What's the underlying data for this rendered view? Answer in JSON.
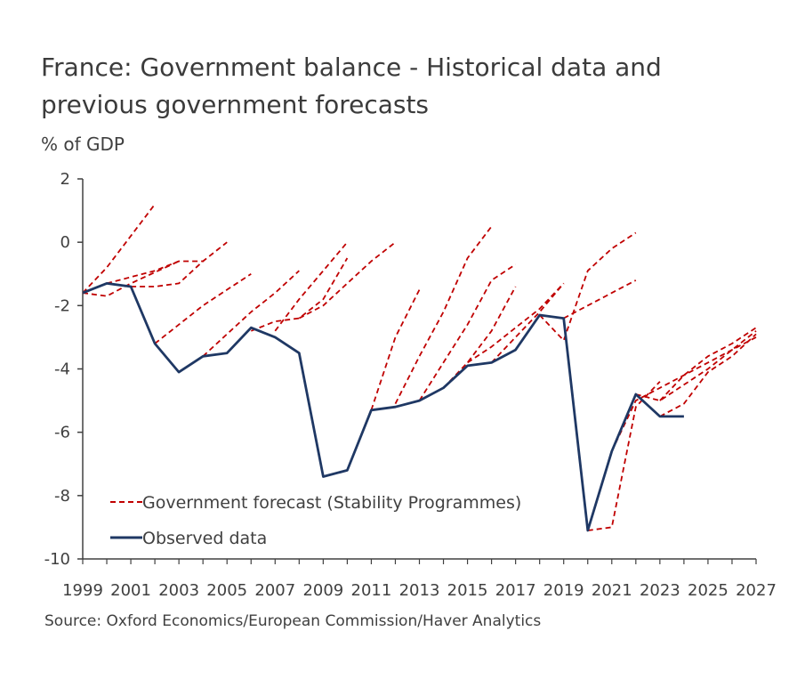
{
  "title": "France: Government balance - Historical data and previous government forecasts",
  "unit_label": "% of GDP",
  "source": "Source: Oxford Economics/European Commission/Haver Analytics",
  "colors": {
    "observed": "#1f3864",
    "forecast": "#c00000",
    "axis": "#404040"
  },
  "chart_data": {
    "type": "line",
    "title": "France: Government balance - Historical data and previous government forecasts",
    "ylabel": "% of GDP",
    "xlim": [
      1999,
      2027
    ],
    "ylim": [
      -10,
      2
    ],
    "x_ticks": [
      "1999",
      "2001",
      "2003",
      "2005",
      "2007",
      "2009",
      "2011",
      "2013",
      "2015",
      "2017",
      "2019",
      "2021",
      "2023",
      "2025",
      "2027"
    ],
    "y_ticks": [
      "2",
      "0",
      "-2",
      "-4",
      "-6",
      "-8",
      "-10"
    ],
    "legend": {
      "position": "bottom-left",
      "entries": [
        "Government forecast (Stability Programmes)",
        "Observed data"
      ]
    },
    "series": [
      {
        "name": "Observed data",
        "style": "solid",
        "x": [
          1999,
          2000,
          2001,
          2002,
          2003,
          2004,
          2005,
          2006,
          2007,
          2008,
          2009,
          2010,
          2011,
          2012,
          2013,
          2014,
          2015,
          2016,
          2017,
          2018,
          2019,
          2020,
          2021,
          2022,
          2023,
          2024
        ],
        "y": [
          -1.6,
          -1.3,
          -1.4,
          -3.2,
          -4.1,
          -3.6,
          -3.5,
          -2.7,
          -3.0,
          -3.5,
          -7.4,
          -7.2,
          -5.3,
          -5.2,
          -5.0,
          -4.6,
          -3.9,
          -3.8,
          -3.4,
          -2.3,
          -2.4,
          -9.1,
          -6.6,
          -4.8,
          -5.5,
          -5.5
        ]
      },
      {
        "name": "Government forecast (Stability Programmes)",
        "style": "dashed",
        "forecasts": [
          {
            "x": [
              1999,
              2000,
              2001,
              2002
            ],
            "y": [
              -1.6,
              -0.8,
              0.2,
              1.2
            ]
          },
          {
            "x": [
              1999,
              2000,
              2001,
              2003
            ],
            "y": [
              -1.6,
              -1.7,
              -1.3,
              -0.6
            ]
          },
          {
            "x": [
              2000,
              2001,
              2002,
              2003,
              2004
            ],
            "y": [
              -1.3,
              -1.1,
              -0.9,
              -0.6,
              -0.6
            ]
          },
          {
            "x": [
              2001,
              2002,
              2003,
              2004,
              2005
            ],
            "y": [
              -1.4,
              -1.4,
              -1.3,
              -0.6,
              0.0
            ]
          },
          {
            "x": [
              2002,
              2003,
              2004,
              2005,
              2006
            ],
            "y": [
              -3.2,
              -2.6,
              -2.0,
              -1.5,
              -1.0
            ]
          },
          {
            "x": [
              2004,
              2005,
              2006,
              2007,
              2008
            ],
            "y": [
              -3.6,
              -2.9,
              -2.2,
              -1.6,
              -0.9
            ]
          },
          {
            "x": [
              2006,
              2007,
              2008,
              2009,
              2010
            ],
            "y": [
              -2.8,
              -2.5,
              -2.4,
              -1.8,
              -0.5
            ]
          },
          {
            "x": [
              2007,
              2008,
              2009,
              2010
            ],
            "y": [
              -2.8,
              -1.8,
              -0.9,
              0.0
            ]
          },
          {
            "x": [
              2008,
              2009,
              2010,
              2011,
              2012
            ],
            "y": [
              -2.4,
              -2.0,
              -1.3,
              -0.6,
              0.0
            ]
          },
          {
            "x": [
              2011,
              2012,
              2013
            ],
            "y": [
              -5.3,
              -3.0,
              -1.5
            ]
          },
          {
            "x": [
              2012,
              2013,
              2014,
              2015,
              2016
            ],
            "y": [
              -5.1,
              -3.6,
              -2.2,
              -0.5,
              0.5
            ]
          },
          {
            "x": [
              2013,
              2014,
              2015,
              2016,
              2017
            ],
            "y": [
              -5.0,
              -3.8,
              -2.6,
              -1.2,
              -0.7
            ]
          },
          {
            "x": [
              2014,
              2015,
              2016,
              2017
            ],
            "y": [
              -4.6,
              -3.8,
              -2.8,
              -1.4
            ]
          },
          {
            "x": [
              2015,
              2016,
              2017,
              2018,
              2019
            ],
            "y": [
              -3.8,
              -3.3,
              -2.7,
              -2.1,
              -1.3
            ]
          },
          {
            "x": [
              2016,
              2017,
              2018,
              2019
            ],
            "y": [
              -3.8,
              -3.0,
              -2.2,
              -1.3
            ]
          },
          {
            "x": [
              2018,
              2019,
              2020,
              2021,
              2022
            ],
            "y": [
              -2.3,
              -3.1,
              -0.9,
              -0.2,
              0.3
            ]
          },
          {
            "x": [
              2019,
              2020,
              2021,
              2022
            ],
            "y": [
              -2.4,
              -2.0,
              -1.6,
              -1.2
            ]
          },
          {
            "x": [
              2020,
              2021,
              2022,
              2023
            ],
            "y": [
              -9.1,
              -9.0,
              -5.2,
              -4.4
            ]
          },
          {
            "x": [
              2021,
              2022,
              2023,
              2024,
              2025,
              2026,
              2027
            ],
            "y": [
              -6.6,
              -5.0,
              -4.6,
              -4.2,
              -3.8,
              -3.4,
              -3.0
            ]
          },
          {
            "x": [
              2022,
              2023,
              2024,
              2025,
              2026,
              2027
            ],
            "y": [
              -4.8,
              -5.0,
              -4.5,
              -4.0,
              -3.4,
              -2.8
            ]
          },
          {
            "x": [
              2023,
              2024,
              2025,
              2026,
              2027
            ],
            "y": [
              -5.0,
              -4.2,
              -3.6,
              -3.2,
              -2.7
            ]
          },
          {
            "x": [
              2023,
              2024,
              2025,
              2026,
              2027
            ],
            "y": [
              -5.5,
              -5.1,
              -4.1,
              -3.6,
              -2.9
            ]
          }
        ]
      }
    ]
  }
}
